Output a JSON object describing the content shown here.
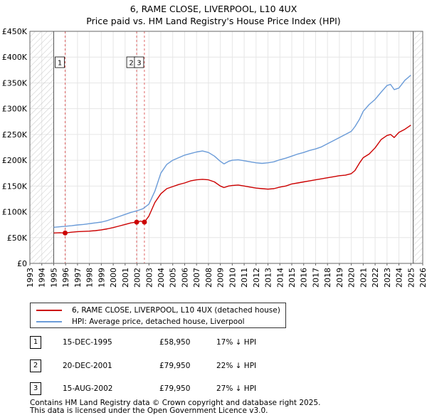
{
  "chart_data": {
    "type": "line",
    "title": "6, RAME CLOSE, LIVERPOOL, L10 4UX",
    "subtitle": "Price paid vs. HM Land Registry's House Price Index (HPI)",
    "xlim": [
      1993,
      2026
    ],
    "ylim": [
      0,
      450000
    ],
    "x_ticks": [
      "1993",
      "1994",
      "1995",
      "1996",
      "1997",
      "1998",
      "1999",
      "2000",
      "2001",
      "2002",
      "2003",
      "2004",
      "2005",
      "2006",
      "2007",
      "2008",
      "2009",
      "2010",
      "2011",
      "2012",
      "2013",
      "2014",
      "2015",
      "2016",
      "2017",
      "2018",
      "2019",
      "2020",
      "2021",
      "2022",
      "2023",
      "2024",
      "2025",
      "2026"
    ],
    "y_ticks": [
      {
        "value": 0,
        "label": "£0"
      },
      {
        "value": 50000,
        "label": "£50K"
      },
      {
        "value": 100000,
        "label": "£100K"
      },
      {
        "value": 150000,
        "label": "£150K"
      },
      {
        "value": 200000,
        "label": "£200K"
      },
      {
        "value": 250000,
        "label": "£250K"
      },
      {
        "value": 300000,
        "label": "£300K"
      },
      {
        "value": 350000,
        "label": "£350K"
      },
      {
        "value": 400000,
        "label": "£400K"
      },
      {
        "value": 450000,
        "label": "£450K"
      }
    ],
    "hatched_ranges": [
      [
        1993,
        1995.0
      ],
      [
        2025.2,
        2026
      ]
    ],
    "series": [
      {
        "name": "6, RAME CLOSE, LIVERPOOL, L10 4UX (detached house)",
        "color": "#cc0000",
        "x": [
          1995.0,
          1995.5,
          1995.96,
          1996.5,
          1997,
          1997.5,
          1998,
          1998.5,
          1999,
          1999.5,
          2000,
          2000.5,
          2001,
          2001.5,
          2001.97,
          2002.3,
          2002.62,
          2003,
          2003.5,
          2004,
          2004.5,
          2005,
          2005.5,
          2006,
          2006.5,
          2007,
          2007.5,
          2008,
          2008.5,
          2009,
          2009.3,
          2009.7,
          2010,
          2010.5,
          2011,
          2011.5,
          2012,
          2012.5,
          2013,
          2013.5,
          2014,
          2014.5,
          2015,
          2015.5,
          2016,
          2016.5,
          2017,
          2017.5,
          2018,
          2018.5,
          2019,
          2019.5,
          2020,
          2020.3,
          2020.7,
          2021,
          2021.5,
          2022,
          2022.5,
          2023,
          2023.3,
          2023.6,
          2024,
          2024.5,
          2025
        ],
        "y": [
          59000,
          59500,
          58950,
          60500,
          61500,
          62000,
          62500,
          63500,
          65000,
          67000,
          69500,
          72500,
          75500,
          78500,
          79950,
          82000,
          79950,
          92000,
          118000,
          135000,
          145000,
          149000,
          153000,
          156000,
          160000,
          162000,
          163000,
          162000,
          158000,
          150000,
          147000,
          150000,
          151000,
          152000,
          150000,
          148000,
          146000,
          145000,
          144000,
          145000,
          148000,
          150000,
          154000,
          156000,
          158000,
          160000,
          162000,
          164000,
          166000,
          168000,
          170000,
          171000,
          174000,
          180000,
          195000,
          205000,
          212000,
          224000,
          240000,
          248000,
          250000,
          244000,
          254000,
          260000,
          268000
        ]
      },
      {
        "name": "HPI: Average price, detached house, Liverpool",
        "color": "#6a9bd8",
        "x": [
          1995.0,
          1995.5,
          1996,
          1996.5,
          1997,
          1997.5,
          1998,
          1998.5,
          1999,
          1999.5,
          2000,
          2000.5,
          2001,
          2001.5,
          2002,
          2002.5,
          2003,
          2003.5,
          2004,
          2004.5,
          2005,
          2005.5,
          2006,
          2006.5,
          2007,
          2007.5,
          2008,
          2008.5,
          2009,
          2009.3,
          2009.7,
          2010,
          2010.5,
          2011,
          2011.5,
          2012,
          2012.5,
          2013,
          2013.5,
          2014,
          2014.5,
          2015,
          2015.5,
          2016,
          2016.5,
          2017,
          2017.5,
          2018,
          2018.5,
          2019,
          2019.5,
          2020,
          2020.3,
          2020.7,
          2021,
          2021.5,
          2022,
          2022.5,
          2023,
          2023.3,
          2023.6,
          2024,
          2024.5,
          2025
        ],
        "y": [
          70000,
          71000,
          72000,
          73000,
          74500,
          75500,
          77000,
          78500,
          80000,
          83000,
          87000,
          91000,
          95000,
          99000,
          102000,
          106000,
          115000,
          140000,
          175000,
          192000,
          200000,
          205000,
          210000,
          213000,
          216000,
          218000,
          215000,
          208000,
          198000,
          193000,
          198000,
          200000,
          201000,
          199000,
          197000,
          195000,
          194000,
          195000,
          197000,
          201000,
          204000,
          208000,
          212000,
          215000,
          219000,
          222000,
          226000,
          232000,
          238000,
          244000,
          250000,
          256000,
          265000,
          280000,
          295000,
          308000,
          318000,
          332000,
          345000,
          347000,
          337000,
          340000,
          355000,
          365000
        ]
      }
    ],
    "sale_markers": [
      {
        "label": "1",
        "x": 1995.96,
        "y": 58950
      },
      {
        "label": "2",
        "x": 2001.97,
        "y": 79950
      },
      {
        "label": "3",
        "x": 2002.62,
        "y": 79950
      }
    ]
  },
  "legend": {
    "property_label": "6, RAME CLOSE, LIVERPOOL, L10 4UX (detached house)",
    "hpi_label": "HPI: Average price, detached house, Liverpool"
  },
  "sales": [
    {
      "num": "1",
      "date": "15-DEC-1995",
      "price": "£58,950",
      "hpi": "17% ↓ HPI"
    },
    {
      "num": "2",
      "date": "20-DEC-2001",
      "price": "£79,950",
      "hpi": "22% ↓ HPI"
    },
    {
      "num": "3",
      "date": "15-AUG-2002",
      "price": "£79,950",
      "hpi": "27% ↓ HPI"
    }
  ],
  "footer": {
    "line1": "Contains HM Land Registry data © Crown copyright and database right 2025.",
    "line2": "This data is licensed under the Open Government Licence v3.0."
  }
}
